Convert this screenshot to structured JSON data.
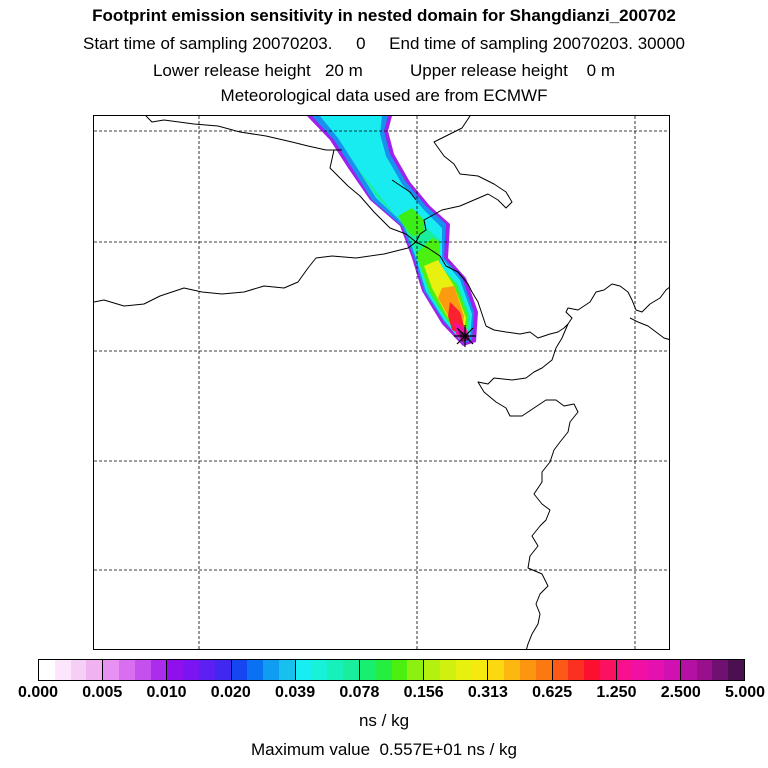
{
  "header": {
    "title": "Footprint emission sensitivity in nested domain for Shangdianzi_200702",
    "sampling_line": "Start time of sampling 20070203.     0     End time of sampling 20070203. 30000",
    "release_line": "Lower release height   20 m          Upper release height    0 m",
    "met_line": "Meteorological data used are from ECMWF"
  },
  "colorbar": {
    "tick_labels": [
      "0.000",
      "0.005",
      "0.010",
      "0.020",
      "0.039",
      "0.078",
      "0.156",
      "0.313",
      "0.625",
      "1.250",
      "2.500",
      "5.000"
    ],
    "colors": [
      "#ffffff",
      "#fbe6fb",
      "#f6cff6",
      "#f0b2f0",
      "#e792f2",
      "#d86ef0",
      "#c450ee",
      "#ab2cec",
      "#8f10ec",
      "#7a14f0",
      "#5d20f2",
      "#4028f0",
      "#1646f0",
      "#0a72f2",
      "#109cf0",
      "#18c0ee",
      "#18eef2",
      "#18f2d8",
      "#18f0bc",
      "#18ee9c",
      "#18ee70",
      "#26ee40",
      "#4cf010",
      "#8cf010",
      "#b4f010",
      "#d0f010",
      "#e8f010",
      "#f4ea10",
      "#fcd810",
      "#fcb810",
      "#fc9610",
      "#fc7810",
      "#fc5818",
      "#fc3020",
      "#fc1030",
      "#fc1060",
      "#f8108c",
      "#f010a4",
      "#e410b0",
      "#d010b0",
      "#b410a4",
      "#98108c",
      "#701070",
      "#4a1050"
    ],
    "unit": "ns / kg"
  },
  "footer": {
    "max_value": "Maximum value  0.557E+01 ns / kg"
  },
  "map": {
    "receptor_icon": "star-receptor-icon",
    "coastline_color": "#000000",
    "grid_line_style": "dashed"
  }
}
